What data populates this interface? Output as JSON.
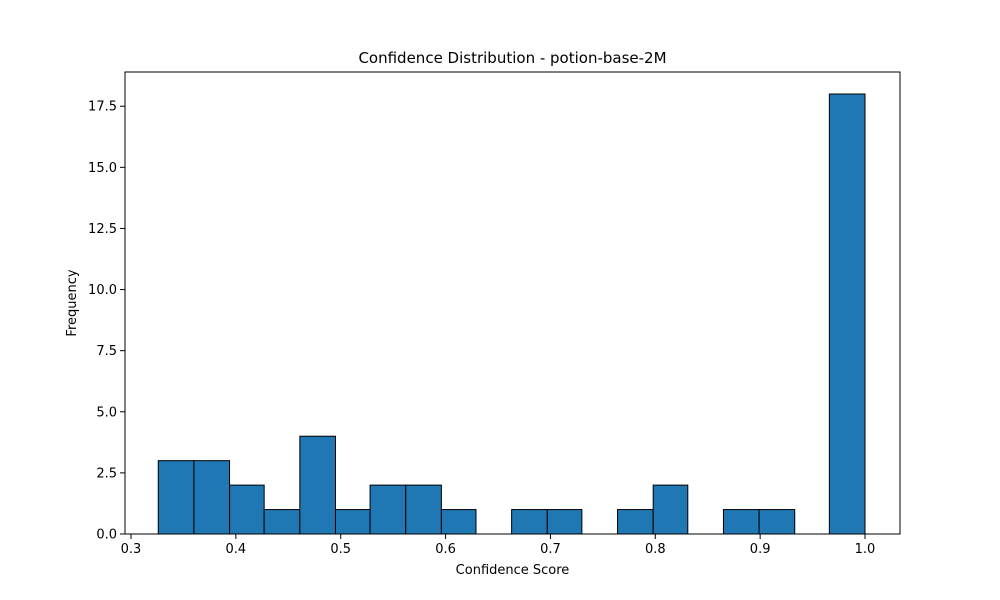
{
  "chart_data": {
    "type": "bar",
    "title": "Confidence Distribution - potion-base-2M",
    "xlabel": "Confidence Score",
    "ylabel": "Frequency",
    "xlim": [
      0.3,
      1.0
    ],
    "ylim": [
      0,
      18.9
    ],
    "x_ticks": [
      0.3,
      0.4,
      0.5,
      0.6,
      0.7,
      0.8,
      0.9,
      1.0
    ],
    "x_tick_labels": [
      "0.3",
      "0.4",
      "0.5",
      "0.6",
      "0.7",
      "0.8",
      "0.9",
      "1.0"
    ],
    "y_ticks": [
      0,
      2.5,
      5,
      7.5,
      10,
      12.5,
      15,
      17.5
    ],
    "y_tick_labels": [
      "0.0",
      "2.5",
      "5.0",
      "7.5",
      "10.0",
      "12.5",
      "15.0",
      "17.5"
    ],
    "bar_color": "#1f77b4",
    "edge_color": "#000000",
    "grid": false,
    "bins": [
      {
        "start": 0.326,
        "end": 0.36,
        "count": 3
      },
      {
        "start": 0.36,
        "end": 0.394,
        "count": 3
      },
      {
        "start": 0.394,
        "end": 0.427,
        "count": 2
      },
      {
        "start": 0.427,
        "end": 0.461,
        "count": 1
      },
      {
        "start": 0.461,
        "end": 0.495,
        "count": 4
      },
      {
        "start": 0.495,
        "end": 0.528,
        "count": 1
      },
      {
        "start": 0.528,
        "end": 0.562,
        "count": 2
      },
      {
        "start": 0.562,
        "end": 0.596,
        "count": 2
      },
      {
        "start": 0.596,
        "end": 0.629,
        "count": 1
      },
      {
        "start": 0.629,
        "end": 0.663,
        "count": 0
      },
      {
        "start": 0.663,
        "end": 0.697,
        "count": 1
      },
      {
        "start": 0.697,
        "end": 0.73,
        "count": 1
      },
      {
        "start": 0.73,
        "end": 0.764,
        "count": 0
      },
      {
        "start": 0.764,
        "end": 0.798,
        "count": 1
      },
      {
        "start": 0.798,
        "end": 0.831,
        "count": 2
      },
      {
        "start": 0.831,
        "end": 0.865,
        "count": 0
      },
      {
        "start": 0.865,
        "end": 0.899,
        "count": 1
      },
      {
        "start": 0.899,
        "end": 0.933,
        "count": 1
      },
      {
        "start": 0.933,
        "end": 0.966,
        "count": 0
      },
      {
        "start": 0.966,
        "end": 1.0,
        "count": 18
      }
    ]
  }
}
